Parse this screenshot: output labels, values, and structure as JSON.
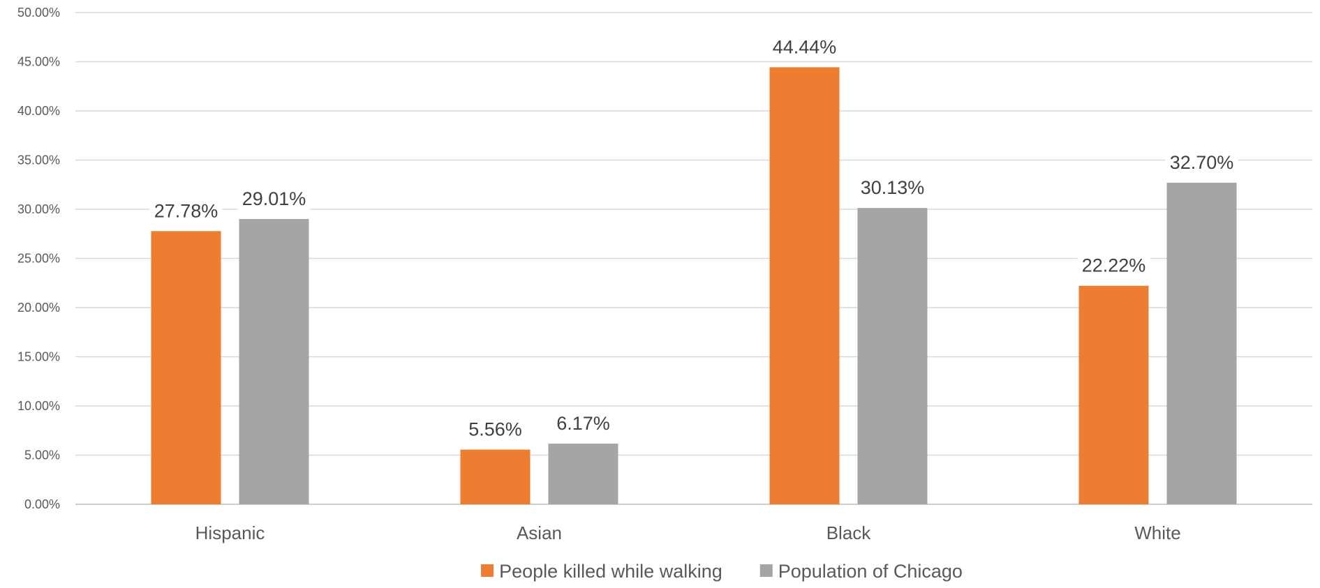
{
  "chart_data": {
    "type": "bar",
    "title": "",
    "xlabel": "",
    "ylabel": "",
    "categories": [
      "Hispanic",
      "Asian",
      "Black",
      "White"
    ],
    "series": [
      {
        "name": "People killed while walking",
        "color": "#ed7d31",
        "values": [
          27.78,
          5.56,
          44.44,
          22.22
        ],
        "labels": [
          "27.78%",
          "5.56%",
          "44.44%",
          "22.22%"
        ]
      },
      {
        "name": "Population of Chicago",
        "color": "#a5a5a5",
        "values": [
          29.01,
          6.17,
          30.13,
          32.7
        ],
        "labels": [
          "29.01%",
          "6.17%",
          "30.13%",
          "32.70%"
        ]
      }
    ],
    "ylim": [
      0,
      50
    ],
    "yticks": [
      0,
      5,
      10,
      15,
      20,
      25,
      30,
      35,
      40,
      45,
      50
    ],
    "ytick_labels": [
      "0.00%",
      "5.00%",
      "10.00%",
      "15.00%",
      "20.00%",
      "25.00%",
      "30.00%",
      "35.00%",
      "40.00%",
      "45.00%",
      "50.00%"
    ],
    "grid": true,
    "legend_position": "bottom"
  }
}
